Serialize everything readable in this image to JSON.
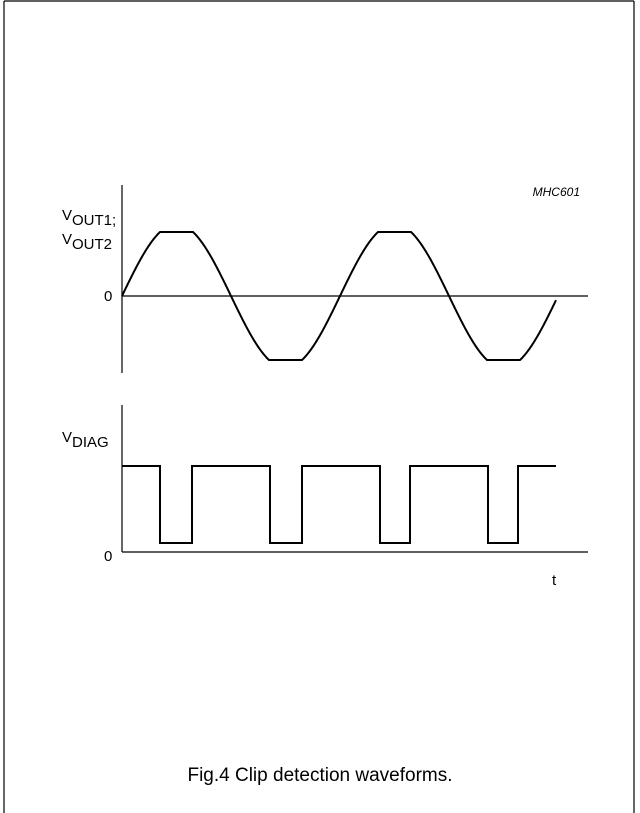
{
  "figure_id": "MHC601",
  "top_plot": {
    "y_label": {
      "main": "V",
      "sub": "OUT1;"
    },
    "y_label_2": {
      "main": "V",
      "sub": "OUT2"
    },
    "zero_label": "0"
  },
  "bottom_plot": {
    "y_label": {
      "main": "V",
      "sub": "DIAG"
    },
    "zero_label": "0",
    "x_label": "t"
  },
  "caption": "Fig.4  Clip detection waveforms."
}
